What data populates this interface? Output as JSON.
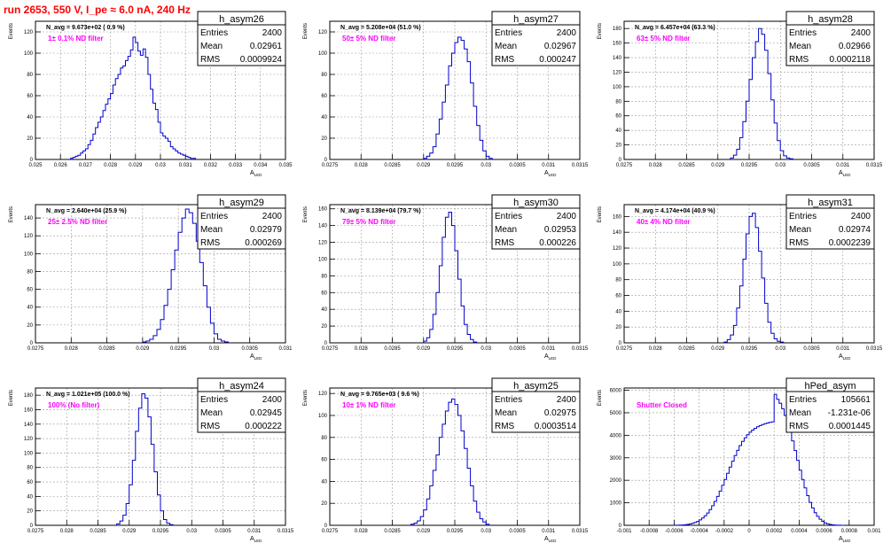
{
  "run_title": "run 2653,   550 V, I_pe ≈ 6.0 nA, 240 Hz",
  "colors": {
    "hist_line": "#0000cc",
    "filter_label": "#ff00ff",
    "title_text": "#ff0000",
    "grid": "#999999"
  },
  "chart_data": [
    {
      "type": "histogram",
      "name": "h_asym26",
      "navg": "N_avg = 9.673e+02 ( 0.9 %)",
      "filter": "1± 0.1% ND filter",
      "stats": {
        "Entries": "2400",
        "Mean": "0.02961",
        "RMS": "0.0009924"
      },
      "xlabel": "A_LED",
      "ylabel": "Events",
      "xlim": [
        0.025,
        0.035
      ],
      "ylim": [
        0,
        130
      ],
      "xticks": [
        "0.025",
        "0.026",
        "0.027",
        "0.028",
        "0.029",
        "0.03",
        "0.031",
        "0.032",
        "0.033",
        "0.034",
        "0.035"
      ],
      "yticks": [
        "0",
        "20",
        "40",
        "60",
        "80",
        "100",
        "120"
      ],
      "bins": {
        "start": 0.0264,
        "width": 0.0001,
        "counts": [
          1,
          2,
          3,
          4,
          6,
          8,
          10,
          14,
          18,
          24,
          30,
          35,
          40,
          46,
          52,
          57,
          62,
          70,
          76,
          80,
          86,
          88,
          93,
          97,
          103,
          115,
          110,
          102,
          98,
          104,
          96,
          80,
          66,
          53,
          47,
          35,
          25,
          22,
          20,
          17,
          12,
          10,
          8,
          6,
          5,
          4,
          3,
          2,
          1,
          1
        ]
      }
    },
    {
      "type": "histogram",
      "name": "h_asym27",
      "navg": "N_avg = 5.208e+04 (51.0 %)",
      "filter": "50± 5% ND filter",
      "stats": {
        "Entries": "2400",
        "Mean": "0.02967",
        "RMS": "0.000247"
      },
      "xlabel": "A_LED",
      "ylabel": "Events",
      "xlim": [
        0.0275,
        0.0315
      ],
      "ylim": [
        0,
        130
      ],
      "xticks": [
        "0.0275",
        "0.028",
        "0.0285",
        "0.029",
        "0.0295",
        "0.03",
        "0.0305",
        "0.031",
        "0.0315"
      ],
      "yticks": [
        "0",
        "20",
        "40",
        "60",
        "80",
        "100",
        "120"
      ],
      "bins": {
        "start": 0.029,
        "width": 5e-05,
        "counts": [
          1,
          3,
          6,
          12,
          24,
          38,
          54,
          70,
          88,
          100,
          110,
          115,
          112,
          104,
          92,
          72,
          50,
          32,
          18,
          8,
          3,
          1
        ]
      }
    },
    {
      "type": "histogram",
      "name": "h_asym28",
      "navg": "N_avg = 6.457e+04 (63.3 %)",
      "filter": "63± 5% ND filter",
      "stats": {
        "Entries": "2400",
        "Mean": "0.02966",
        "RMS": "0.0002118"
      },
      "xlabel": "A_LED",
      "ylabel": "Events",
      "xlim": [
        0.0275,
        0.0315
      ],
      "ylim": [
        0,
        190
      ],
      "xticks": [
        "0.0275",
        "0.028",
        "0.0285",
        "0.029",
        "0.0295",
        "0.03",
        "0.0305",
        "0.031",
        "0.0315"
      ],
      "yticks": [
        "0",
        "20",
        "40",
        "60",
        "80",
        "100",
        "120",
        "140",
        "160",
        "180"
      ],
      "bins": {
        "start": 0.0292,
        "width": 5e-05,
        "counts": [
          2,
          6,
          14,
          30,
          52,
          80,
          110,
          140,
          162,
          180,
          172,
          150,
          118,
          82,
          50,
          26,
          12,
          5,
          2,
          1
        ]
      }
    },
    {
      "type": "histogram",
      "name": "h_asym29",
      "navg": "N_avg = 2.640e+04 (25.9 %)",
      "filter": "25± 2.5% ND filter",
      "stats": {
        "Entries": "2400",
        "Mean": "0.02979",
        "RMS": "0.000269"
      },
      "xlabel": "A_LED",
      "ylabel": "Events",
      "xlim": [
        0.0275,
        0.031
      ],
      "ylim": [
        0,
        155
      ],
      "xticks": [
        "0.0275",
        "0.028",
        "0.0285",
        "0.029",
        "0.0295",
        "0.03",
        "0.0305",
        "0.031"
      ],
      "yticks": [
        "0",
        "20",
        "40",
        "60",
        "80",
        "100",
        "120",
        "140"
      ],
      "bins": {
        "start": 0.029,
        "width": 5e-05,
        "counts": [
          1,
          2,
          4,
          8,
          15,
          26,
          42,
          60,
          82,
          104,
          124,
          140,
          150,
          146,
          134,
          114,
          90,
          64,
          40,
          22,
          10,
          4,
          2,
          1
        ]
      }
    },
    {
      "type": "histogram",
      "name": "h_asym30",
      "navg": "N_avg = 8.139e+04 (79.7 %)",
      "filter": "79± 5% ND filter",
      "stats": {
        "Entries": "2400",
        "Mean": "0.02953",
        "RMS": "0.000226"
      },
      "xlabel": "A_LED",
      "ylabel": "Events",
      "xlim": [
        0.0275,
        0.0315
      ],
      "ylim": [
        0,
        165
      ],
      "xticks": [
        "0.0275",
        "0.028",
        "0.0285",
        "0.029",
        "0.0295",
        "0.03",
        "0.0305",
        "0.031",
        "0.0315"
      ],
      "yticks": [
        "0",
        "20",
        "40",
        "60",
        "80",
        "100",
        "120",
        "140",
        "160"
      ],
      "bins": {
        "start": 0.029,
        "width": 5e-05,
        "counts": [
          2,
          6,
          16,
          34,
          60,
          92,
          126,
          150,
          156,
          140,
          110,
          76,
          44,
          22,
          10,
          4,
          1
        ]
      }
    },
    {
      "type": "histogram",
      "name": "h_asym31",
      "navg": "N_avg = 4.174e+04 (40.9 %)",
      "filter": "40± 4% ND filter",
      "stats": {
        "Entries": "2400",
        "Mean": "0.02974",
        "RMS": "0.0002239"
      },
      "xlabel": "A_LED",
      "ylabel": "Events",
      "xlim": [
        0.0275,
        0.0315
      ],
      "ylim": [
        0,
        175
      ],
      "xticks": [
        "0.0275",
        "0.028",
        "0.0285",
        "0.029",
        "0.0295",
        "0.03",
        "0.0305",
        "0.031",
        "0.0315"
      ],
      "yticks": [
        "0",
        "20",
        "40",
        "60",
        "80",
        "100",
        "120",
        "140",
        "160"
      ],
      "bins": {
        "start": 0.0291,
        "width": 5e-05,
        "counts": [
          1,
          4,
          10,
          22,
          44,
          72,
          106,
          138,
          160,
          164,
          146,
          116,
          82,
          50,
          26,
          12,
          5,
          2,
          1
        ]
      }
    },
    {
      "type": "histogram",
      "name": "h_asym24",
      "navg": "N_avg = 1.021e+05 (100.0 %)",
      "filter": "100% (No filter)",
      "stats": {
        "Entries": "2400",
        "Mean": "0.02945",
        "RMS": "0.000222"
      },
      "xlabel": "A_LED",
      "ylabel": "Events",
      "xlim": [
        0.0275,
        0.0315
      ],
      "ylim": [
        0,
        190
      ],
      "xticks": [
        "0.0275",
        "0.028",
        "0.0285",
        "0.029",
        "0.0295",
        "0.03",
        "0.0305",
        "0.031",
        "0.0315"
      ],
      "yticks": [
        "0",
        "20",
        "40",
        "60",
        "80",
        "100",
        "120",
        "140",
        "160",
        "180"
      ],
      "bins": {
        "start": 0.0288,
        "width": 5e-05,
        "counts": [
          2,
          6,
          14,
          30,
          56,
          90,
          130,
          162,
          182,
          176,
          150,
          112,
          74,
          42,
          20,
          8,
          3,
          1
        ]
      }
    },
    {
      "type": "histogram",
      "name": "h_asym25",
      "navg": "N_avg = 9.765e+03 ( 9.6 %)",
      "filter": "10± 1% ND filter",
      "stats": {
        "Entries": "2400",
        "Mean": "0.02975",
        "RMS": "0.0003514"
      },
      "xlabel": "A_LED",
      "ylabel": "Events",
      "xlim": [
        0.0275,
        0.0315
      ],
      "ylim": [
        0,
        125
      ],
      "xticks": [
        "0.0275",
        "0.028",
        "0.0285",
        "0.029",
        "0.0295",
        "0.03",
        "0.0305",
        "0.031",
        "0.0315"
      ],
      "yticks": [
        "0",
        "20",
        "40",
        "60",
        "80",
        "100",
        "120"
      ],
      "bins": {
        "start": 0.0288,
        "width": 5e-05,
        "counts": [
          1,
          2,
          4,
          8,
          14,
          24,
          36,
          50,
          64,
          80,
          92,
          104,
          112,
          115,
          110,
          100,
          86,
          70,
          52,
          36,
          22,
          12,
          6,
          3,
          1
        ]
      }
    },
    {
      "type": "histogram",
      "name": "hPed_asym",
      "navg": "",
      "filter": "Shutter Closed",
      "stats": {
        "Entries": "105661",
        "Mean": "-1.231e-06",
        "RMS": "0.0001445"
      },
      "xlabel": "A_LED",
      "ylabel": "Events",
      "xlim": [
        -0.001,
        0.001
      ],
      "ylim": [
        0,
        6100
      ],
      "xticks": [
        "-0.001",
        "-0.0008",
        "-0.0006",
        "-0.0004",
        "-0.0002",
        "0",
        "0.0002",
        "0.0004",
        "0.0006",
        "0.0008",
        "0.001"
      ],
      "yticks": [
        "0",
        "1000",
        "2000",
        "3000",
        "4000",
        "5000",
        "6000"
      ],
      "bins": {
        "start": -0.0006,
        "width": 2e-05,
        "counts": [
          2,
          4,
          8,
          14,
          24,
          38,
          58,
          86,
          124,
          174,
          240,
          322,
          424,
          548,
          696,
          868,
          1064,
          1282,
          1520,
          1774,
          2040,
          2312,
          2584,
          2848,
          3098,
          3330,
          3540,
          3726,
          3886,
          4022,
          4136,
          4232,
          4310,
          4376,
          4430,
          4476,
          4514,
          4546,
          4572,
          4594,
          5820,
          5600,
          5420,
          5180,
          4880,
          4540,
          4160,
          3750,
          3320,
          2880,
          2450,
          2040,
          1660,
          1320,
          1020,
          770,
          560,
          396,
          270,
          176,
          110,
          66,
          38,
          20,
          10,
          5,
          2,
          1
        ]
      }
    }
  ]
}
